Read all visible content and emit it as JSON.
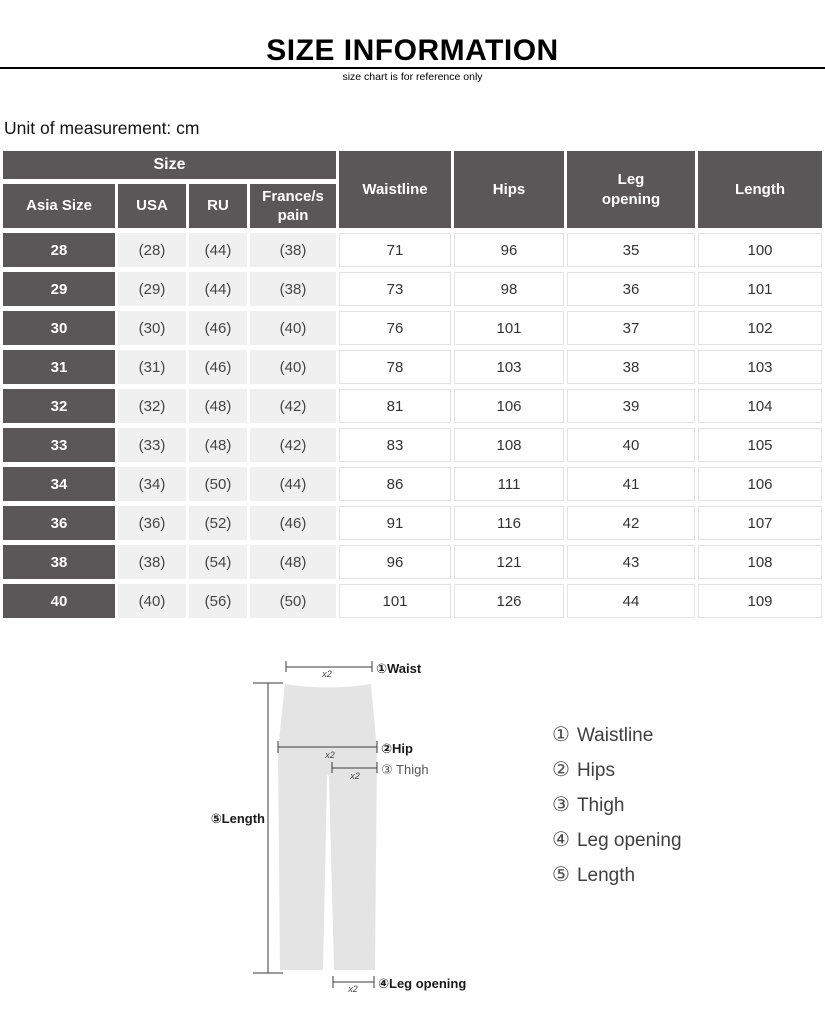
{
  "header": {
    "title": "SIZE INFORMATION",
    "subtitle": "size chart is for reference only",
    "unit_note": "Unit of measurement: cm"
  },
  "table": {
    "group_header": "Size",
    "sub_headers": [
      "Asia Size",
      "USA",
      "RU",
      "France/s\npain"
    ],
    "measure_headers": [
      "Waistline",
      "Hips",
      "Leg\nopening",
      "Length"
    ],
    "rows": [
      [
        "28",
        "(28)",
        "(44)",
        "(38)",
        "71",
        "96",
        "35",
        "100"
      ],
      [
        "29",
        "(29)",
        "(44)",
        "(38)",
        "73",
        "98",
        "36",
        "101"
      ],
      [
        "30",
        "(30)",
        "(46)",
        "(40)",
        "76",
        "101",
        "37",
        "102"
      ],
      [
        "31",
        "(31)",
        "(46)",
        "(40)",
        "78",
        "103",
        "38",
        "103"
      ],
      [
        "32",
        "(32)",
        "(48)",
        "(42)",
        "81",
        "106",
        "39",
        "104"
      ],
      [
        "33",
        "(33)",
        "(48)",
        "(42)",
        "83",
        "108",
        "40",
        "105"
      ],
      [
        "34",
        "(34)",
        "(50)",
        "(44)",
        "86",
        "111",
        "41",
        "106"
      ],
      [
        "36",
        "(36)",
        "(52)",
        "(46)",
        "91",
        "116",
        "42",
        "107"
      ],
      [
        "38",
        "(38)",
        "(54)",
        "(48)",
        "96",
        "121",
        "43",
        "108"
      ],
      [
        "40",
        "(40)",
        "(56)",
        "(50)",
        "101",
        "126",
        "44",
        "109"
      ]
    ]
  },
  "diagram": {
    "waist_label": "①Waist",
    "hip_label": "②Hip",
    "thigh_label": "③ Thigh",
    "leg_opening_label": "④Leg opening",
    "length_label": "⑤Length",
    "x2_label": "x2"
  },
  "legend": {
    "items": [
      {
        "num": "①",
        "label": "Waistline"
      },
      {
        "num": "②",
        "label": "Hips"
      },
      {
        "num": "③",
        "label": "Thigh"
      },
      {
        "num": "④",
        "label": "Leg opening"
      },
      {
        "num": "⑤",
        "label": "Length"
      }
    ]
  },
  "colors": {
    "header_bg": "#595757",
    "light_cell_bg": "#f1f0f0",
    "cell_line": "#e3e3e3",
    "pants_fill": "#e4e4e4",
    "divider": "#000000"
  }
}
